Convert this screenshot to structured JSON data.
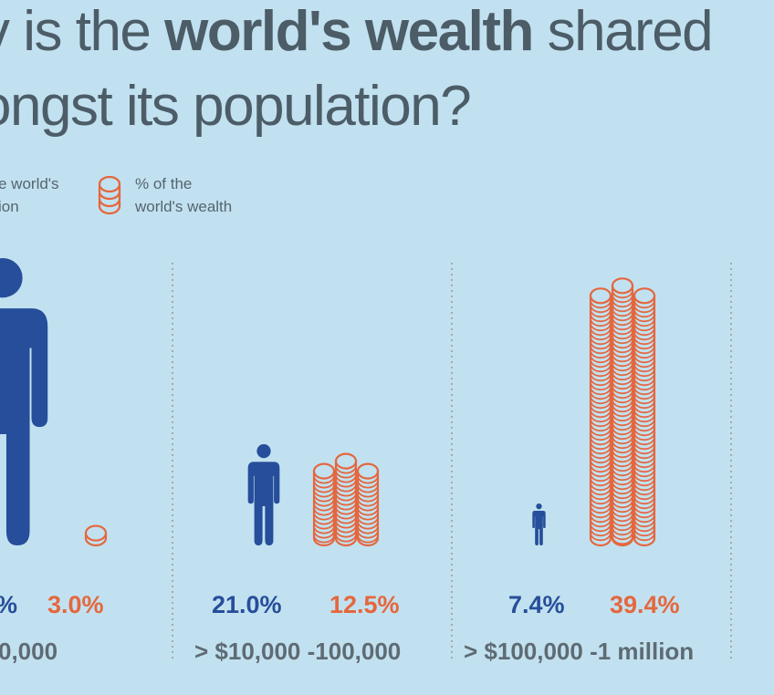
{
  "title": {
    "line1_pre": "v is the ",
    "line1_bold": "world's wealth",
    "line1_post": " shared",
    "line2": "ongst its population?"
  },
  "legend": {
    "population_line1": "e world's",
    "population_line2": "ion",
    "wealth_line1": "% of the",
    "wealth_line2": "world's wealth"
  },
  "colors": {
    "background": "#c2e1f0",
    "population": "#264e9a",
    "wealth": "#e4673e",
    "text": "#4c5d68"
  },
  "chart_data": {
    "type": "bar",
    "title": "",
    "categories": [
      "0,000",
      "> $10,000 -100,000",
      "> $100,000 -1 million"
    ],
    "series": [
      {
        "name": "% of the world's population",
        "labels": [
          "%",
          "21.0%",
          "7.4%"
        ],
        "values": [
          null,
          21.0,
          7.4
        ]
      },
      {
        "name": "% of the world's wealth",
        "labels": [
          "3.0%",
          "12.5%",
          "39.4%"
        ],
        "values": [
          3.0,
          12.5,
          39.4
        ]
      }
    ],
    "icons": {
      "population": "person-icon",
      "wealth": "coin-stack-icon"
    }
  }
}
